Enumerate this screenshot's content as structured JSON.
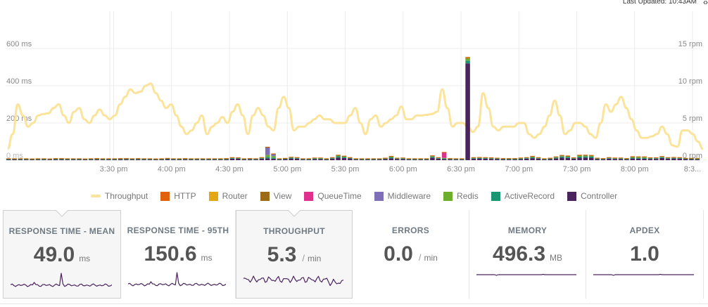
{
  "header": {
    "last_updated": "Last Updated: 10:43AM"
  },
  "icons": {
    "expand": "expand-arrows-icon"
  },
  "chart_data": {
    "type": "bar",
    "left_axis": {
      "ticks": [
        "0 ms",
        "200 ms",
        "400 ms",
        "600 ms"
      ],
      "tick_values": [
        0,
        200,
        400,
        600
      ],
      "range": [
        0,
        800
      ]
    },
    "right_axis": {
      "ticks": [
        "0 rpm",
        "5 rpm",
        "10 rpm",
        "15 rpm"
      ],
      "tick_values": [
        0,
        5,
        10,
        15
      ],
      "range": [
        0,
        20
      ]
    },
    "x_ticks": [
      "3:30 pm",
      "4:00 pm",
      "4:30 pm",
      "5:00 pm",
      "5:30 pm",
      "6:00 pm",
      "6:30 pm",
      "7:00 pm",
      "7:30 pm",
      "8:00 pm",
      "8:3..."
    ],
    "x_tick_minutes": [
      30,
      60,
      90,
      120,
      150,
      180,
      210,
      240,
      270,
      300,
      330
    ],
    "x_range_minutes": [
      -26,
      334
    ],
    "interval_minutes": 3,
    "grid": true,
    "series_colors": {
      "Throughput": "#fce39a",
      "HTTP": "#e0600b",
      "Router": "#e3a713",
      "View": "#9c6b18",
      "QueueTime": "#e0308e",
      "Middleware": "#7f6fb7",
      "Redis": "#6eae2d",
      "ActiveRecord": "#1a9772",
      "Controller": "#4a235e"
    },
    "bars": {
      "Controller": [
        4,
        5,
        4,
        4,
        4,
        4,
        4,
        4,
        5,
        5,
        4,
        4,
        4,
        4,
        4,
        5,
        4,
        4,
        4,
        5,
        5,
        4,
        5,
        4,
        4,
        4,
        4,
        6,
        4,
        4,
        5,
        4,
        4,
        4,
        4,
        4,
        4,
        5,
        8,
        8,
        4,
        5,
        4,
        8,
        10,
        8,
        4,
        6,
        9,
        8,
        4,
        4,
        6,
        6,
        4,
        8,
        14,
        12,
        9,
        4,
        4,
        4,
        4,
        4,
        6,
        10,
        6,
        6,
        4,
        4,
        4,
        4,
        14,
        8,
        6,
        5,
        4,
        4,
        5,
        8,
        9,
        8,
        7,
        6,
        5,
        5,
        5,
        6,
        8,
        11,
        8,
        4,
        6,
        10,
        14,
        12,
        8,
        13,
        14,
        13,
        6,
        5,
        8,
        6,
        6,
        5,
        9,
        8,
        8,
        7,
        7,
        12,
        8,
        9,
        8,
        6,
        6,
        5
      ],
      "ActiveRecord": [
        2,
        2,
        2,
        2,
        2,
        2,
        2,
        2,
        2,
        2,
        2,
        2,
        2,
        2,
        2,
        2,
        2,
        2,
        2,
        2,
        2,
        2,
        2,
        2,
        2,
        2,
        2,
        2,
        2,
        2,
        2,
        2,
        2,
        2,
        2,
        2,
        2,
        2,
        3,
        3,
        2,
        2,
        2,
        3,
        8,
        6,
        2,
        2,
        4,
        3,
        2,
        2,
        3,
        3,
        2,
        3,
        7,
        5,
        3,
        2,
        2,
        2,
        2,
        2,
        3,
        5,
        3,
        3,
        2,
        2,
        2,
        2,
        4,
        3,
        3,
        2,
        2,
        2,
        2,
        3,
        3,
        3,
        3,
        3,
        2,
        2,
        2,
        3,
        3,
        4,
        3,
        2,
        3,
        4,
        6,
        5,
        3,
        6,
        6,
        6,
        3,
        2,
        3,
        3,
        3,
        2,
        4,
        4,
        4,
        3,
        3,
        4,
        3,
        3,
        3,
        2,
        2,
        2
      ],
      "Redis": [
        2,
        1,
        2,
        2,
        1,
        2,
        2,
        1,
        2,
        2,
        2,
        2,
        2,
        1,
        2,
        2,
        2,
        2,
        2,
        2,
        2,
        2,
        2,
        2,
        2,
        1,
        2,
        2,
        2,
        2,
        2,
        2,
        2,
        2,
        2,
        2,
        2,
        2,
        3,
        2,
        2,
        2,
        2,
        3,
        10,
        8,
        2,
        2,
        3,
        3,
        2,
        2,
        3,
        3,
        2,
        3,
        4,
        3,
        2,
        2,
        2,
        2,
        2,
        2,
        2,
        4,
        2,
        3,
        2,
        2,
        2,
        2,
        4,
        3,
        3,
        2,
        2,
        2,
        2,
        3,
        3,
        3,
        3,
        2,
        2,
        2,
        2,
        3,
        3,
        4,
        3,
        2,
        2,
        4,
        4,
        4,
        2,
        6,
        5,
        5,
        2,
        2,
        3,
        3,
        3,
        2,
        4,
        4,
        4,
        3,
        3,
        4,
        3,
        3,
        3,
        2,
        2,
        2
      ],
      "Middleware": [
        0,
        0,
        0,
        0,
        0,
        0,
        0,
        0,
        0,
        0,
        0,
        0,
        0,
        0,
        0,
        0,
        0,
        0,
        0,
        0,
        0,
        0,
        0,
        0,
        0,
        0,
        0,
        0,
        0,
        0,
        0,
        0,
        0,
        0,
        0,
        0,
        0,
        0,
        0,
        0,
        0,
        0,
        0,
        0,
        40,
        10,
        0,
        0,
        0,
        0,
        0,
        0,
        0,
        0,
        0,
        0,
        0,
        0,
        0,
        0,
        0,
        0,
        0,
        0,
        0,
        0,
        0,
        0,
        0,
        0,
        0,
        0,
        0,
        0,
        0,
        0,
        0,
        0,
        0,
        0,
        0,
        0,
        0,
        0,
        0,
        0,
        0,
        0,
        0,
        0,
        0,
        0,
        0,
        0,
        0,
        0,
        0,
        0,
        0,
        0,
        0,
        0,
        0,
        0,
        0,
        0,
        0,
        0,
        0,
        0,
        0,
        0,
        0,
        0,
        0,
        0,
        0,
        0
      ],
      "QueueTime": [
        0,
        0,
        0,
        0,
        0,
        0,
        0,
        0,
        0,
        0,
        0,
        0,
        0,
        0,
        0,
        0,
        0,
        0,
        0,
        0,
        0,
        0,
        0,
        0,
        0,
        0,
        0,
        0,
        0,
        0,
        0,
        0,
        0,
        0,
        0,
        0,
        0,
        0,
        0,
        0,
        0,
        0,
        0,
        0,
        0,
        0,
        0,
        0,
        0,
        0,
        0,
        0,
        0,
        0,
        0,
        0,
        0,
        0,
        0,
        0,
        0,
        0,
        0,
        0,
        0,
        0,
        0,
        0,
        0,
        0,
        0,
        0,
        0,
        0,
        30,
        0,
        0,
        0,
        0,
        0,
        0,
        0,
        0,
        0,
        0,
        0,
        0,
        0,
        0,
        0,
        0,
        0,
        0,
        0,
        0,
        0,
        0,
        0,
        0,
        0,
        0,
        0,
        0,
        0,
        0,
        0,
        0,
        0,
        0,
        0,
        0,
        0,
        0,
        0,
        0,
        0,
        0,
        0
      ],
      "View": [
        1,
        1,
        1,
        1,
        1,
        1,
        1,
        1,
        1,
        1,
        1,
        1,
        1,
        1,
        1,
        1,
        1,
        1,
        1,
        1,
        1,
        1,
        1,
        1,
        1,
        1,
        1,
        1,
        1,
        1,
        1,
        1,
        1,
        1,
        1,
        1,
        1,
        1,
        1,
        1,
        1,
        1,
        1,
        1,
        2,
        2,
        1,
        1,
        1,
        1,
        1,
        1,
        1,
        1,
        1,
        1,
        2,
        2,
        1,
        1,
        1,
        1,
        1,
        1,
        1,
        2,
        1,
        1,
        1,
        1,
        1,
        1,
        2,
        1,
        1,
        1,
        1,
        1,
        1,
        1,
        1,
        1,
        1,
        1,
        1,
        1,
        1,
        1,
        1,
        2,
        1,
        1,
        1,
        1,
        2,
        2,
        1,
        2,
        2,
        2,
        1,
        1,
        1,
        1,
        1,
        1,
        2,
        2,
        2,
        1,
        1,
        1,
        1,
        1,
        1,
        1,
        1,
        1
      ],
      "Router": [
        0,
        0,
        0,
        0,
        0,
        0,
        0,
        0,
        0,
        0,
        0,
        0,
        0,
        0,
        0,
        0,
        0,
        0,
        0,
        0,
        0,
        0,
        0,
        0,
        0,
        0,
        0,
        0,
        0,
        0,
        0,
        0,
        0,
        0,
        0,
        0,
        0,
        0,
        0,
        0,
        0,
        0,
        0,
        0,
        0,
        0,
        0,
        0,
        0,
        0,
        0,
        0,
        0,
        0,
        0,
        0,
        0,
        0,
        0,
        0,
        0,
        0,
        0,
        0,
        0,
        0,
        0,
        0,
        0,
        0,
        0,
        0,
        0,
        0,
        0,
        0,
        0,
        0,
        0,
        0,
        0,
        0,
        0,
        0,
        0,
        0,
        0,
        0,
        0,
        0,
        0,
        0,
        0,
        0,
        0,
        0,
        0,
        0,
        0,
        0,
        0,
        0,
        0,
        0,
        0,
        0,
        0,
        0,
        0,
        0,
        0,
        0,
        0,
        0,
        0,
        0,
        0,
        0
      ],
      "HTTP": [
        1,
        1,
        1,
        1,
        1,
        1,
        1,
        1,
        1,
        1,
        1,
        1,
        1,
        1,
        1,
        1,
        1,
        1,
        1,
        1,
        1,
        1,
        1,
        1,
        1,
        1,
        1,
        1,
        1,
        1,
        1,
        1,
        1,
        1,
        1,
        1,
        1,
        1,
        1,
        1,
        1,
        1,
        1,
        1,
        2,
        2,
        1,
        1,
        1,
        1,
        1,
        1,
        1,
        1,
        1,
        1,
        2,
        2,
        1,
        1,
        1,
        1,
        1,
        1,
        1,
        2,
        1,
        1,
        1,
        1,
        1,
        1,
        2,
        1,
        1,
        1,
        1,
        1,
        1,
        1,
        1,
        1,
        1,
        1,
        1,
        1,
        1,
        1,
        1,
        2,
        1,
        1,
        1,
        1,
        2,
        2,
        1,
        2,
        2,
        2,
        1,
        1,
        1,
        1,
        1,
        1,
        2,
        2,
        2,
        1,
        1,
        1,
        1,
        1,
        1,
        1,
        1,
        1
      ]
    },
    "spike": {
      "index": 78,
      "Controller": 520,
      "ActiveRecord": 15,
      "Redis": 10,
      "View": 4,
      "Router": 3,
      "HTTP": 3
    },
    "throughput_rpm": [
      1.5,
      3.5,
      7.5,
      6,
      4.5,
      5,
      6,
      6.2,
      6.3,
      7,
      7.5,
      6,
      5,
      6.5,
      7,
      5.5,
      5,
      6,
      6.8,
      6,
      5.5,
      6,
      7.5,
      8.5,
      9.5,
      9,
      9.2,
      10,
      10.3,
      9,
      8,
      7,
      7.5,
      6,
      4.5,
      3.5,
      4,
      5,
      6,
      3.5,
      4.5,
      5,
      5.8,
      5,
      6.5,
      7.5,
      6,
      3.5,
      6,
      7,
      6,
      4.5,
      4,
      7,
      8.5,
      7,
      4,
      4.5,
      4.5,
      5,
      5.5,
      6,
      5.5,
      5.5,
      5,
      5,
      5,
      6,
      7,
      5,
      3.5,
      5.5,
      6,
      4.5,
      5,
      5.5,
      6,
      7.2,
      5.5,
      5.5,
      6,
      6,
      6.1,
      6.2,
      6.5,
      9.5,
      7,
      4.5,
      5,
      5,
      4.5,
      3.8,
      4.5,
      9,
      7,
      4.5,
      4,
      4.5,
      4.5,
      4.5,
      5,
      5,
      3.5,
      3,
      3.5,
      4.5,
      6,
      8,
      6,
      3.5,
      4,
      5,
      5,
      4.5,
      3.5,
      3,
      5,
      7.5,
      6.5,
      7.5,
      8.5,
      7,
      5.5,
      4,
      3,
      3,
      3.2,
      3.5,
      4.5,
      3.5,
      2,
      1.8,
      4,
      4,
      3.5,
      2.5,
      1.5
    ],
    "throughput_start_minutes": -25,
    "throughput_interval_minutes": 2.65
  },
  "legend": [
    {
      "label": "Throughput",
      "color": "#fce39a",
      "kind": "line"
    },
    {
      "label": "HTTP",
      "color": "#e0600b",
      "kind": "box"
    },
    {
      "label": "Router",
      "color": "#e3a713",
      "kind": "box"
    },
    {
      "label": "View",
      "color": "#9c6b18",
      "kind": "box"
    },
    {
      "label": "QueueTime",
      "color": "#e0308e",
      "kind": "box"
    },
    {
      "label": "Middleware",
      "color": "#7f6fb7",
      "kind": "box"
    },
    {
      "label": "Redis",
      "color": "#6eae2d",
      "kind": "box"
    },
    {
      "label": "ActiveRecord",
      "color": "#1a9772",
      "kind": "box"
    },
    {
      "label": "Controller",
      "color": "#4a235e",
      "kind": "box"
    }
  ],
  "metrics": [
    {
      "title": "RESPONSE TIME - MEAN",
      "value": "49.0",
      "unit": "ms",
      "selected": true,
      "spark_kind": "spike"
    },
    {
      "title": "RESPONSE TIME - 95TH",
      "value": "150.6",
      "unit": "ms",
      "selected": false,
      "spark_kind": "spike"
    },
    {
      "title": "THROUGHPUT",
      "value": "5.3",
      "unit": "min",
      "per": "/",
      "selected": true,
      "spark_kind": "noisy"
    },
    {
      "title": "ERRORS",
      "value": "0.0",
      "unit": "min",
      "per": "/",
      "selected": false,
      "spark_kind": "none"
    },
    {
      "title": "MEMORY",
      "value": "496.3",
      "unit": "MB",
      "selected": false,
      "spark_kind": "flat"
    },
    {
      "title": "APDEX",
      "value": "1.0",
      "unit": "",
      "selected": false,
      "spark_kind": "flat"
    }
  ]
}
